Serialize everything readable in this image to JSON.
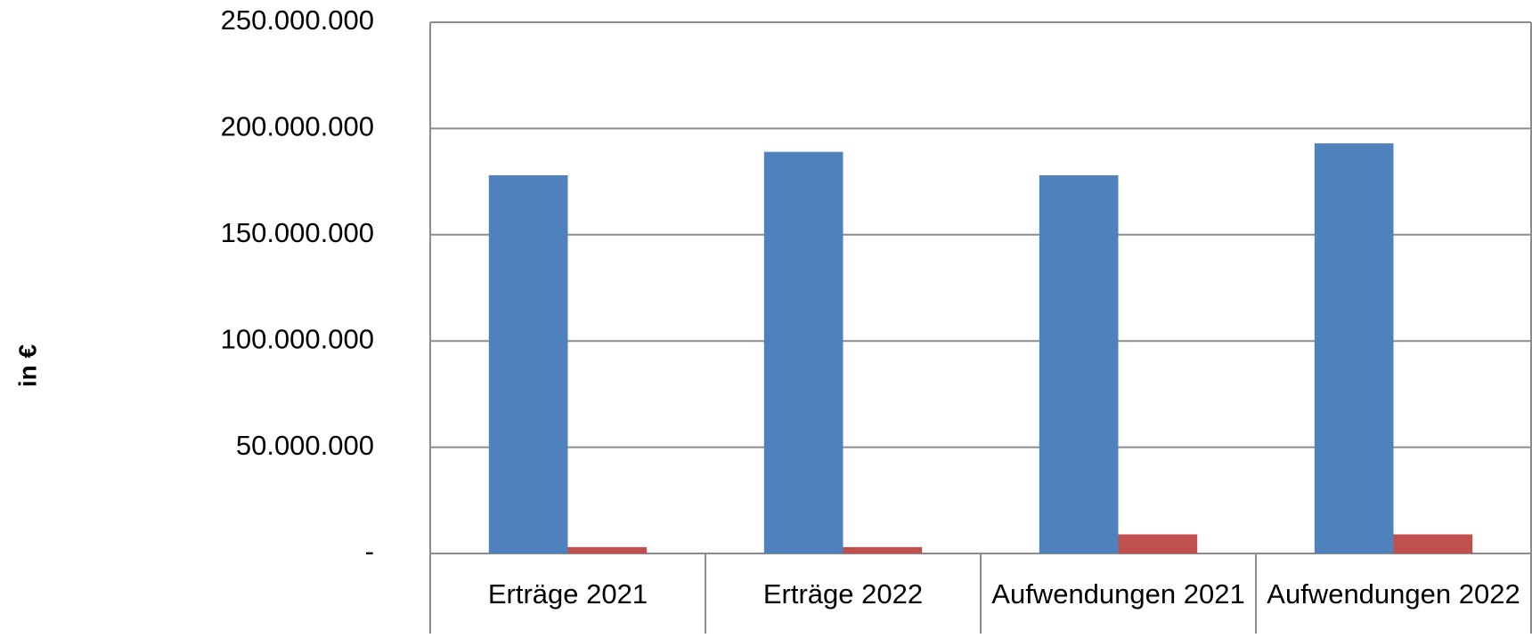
{
  "chart_data": {
    "type": "bar",
    "y_label": "in €",
    "categories": [
      "Erträge 2021",
      "Erträge 2022",
      "Aufwendungen 2021",
      "Aufwendungen 2022"
    ],
    "series": [
      {
        "color": "#4f81bd",
        "values": [
          178000000,
          189000000,
          178000000,
          193000000
        ]
      },
      {
        "color": "#c0504d",
        "values": [
          3000000,
          3000000,
          9000000,
          9000000
        ]
      }
    ],
    "ylim": [
      0,
      250000000
    ],
    "yticks": [
      {
        "value": 0,
        "label": "-"
      },
      {
        "value": 50000000,
        "label": "50.000.000"
      },
      {
        "value": 100000000,
        "label": "100.000.000"
      },
      {
        "value": 150000000,
        "label": "150.000.000"
      },
      {
        "value": 200000000,
        "label": "200.000.000"
      },
      {
        "value": 250000000,
        "label": "250.000.000"
      }
    ],
    "grid": true
  }
}
